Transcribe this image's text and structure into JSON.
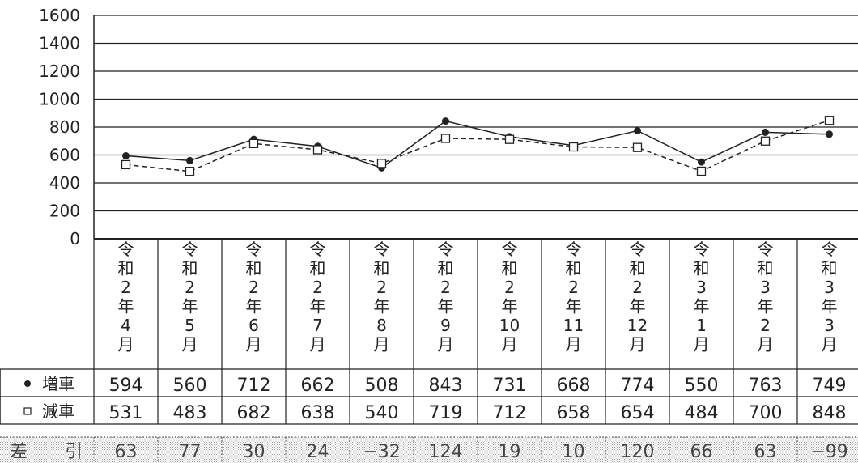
{
  "chart_data": {
    "type": "line",
    "categories": [
      "令和2年4月",
      "令和2年5月",
      "令和2年6月",
      "令和2年7月",
      "令和2年8月",
      "令和2年9月",
      "令和2年10月",
      "令和2年11月",
      "令和2年12月",
      "令和3年1月",
      "令和3年2月",
      "令和3年3月"
    ],
    "category_lines": [
      [
        "令",
        "和",
        "2",
        "年",
        "4",
        "月"
      ],
      [
        "令",
        "和",
        "2",
        "年",
        "5",
        "月"
      ],
      [
        "令",
        "和",
        "2",
        "年",
        "6",
        "月"
      ],
      [
        "令",
        "和",
        "2",
        "年",
        "7",
        "月"
      ],
      [
        "令",
        "和",
        "2",
        "年",
        "8",
        "月"
      ],
      [
        "令",
        "和",
        "2",
        "年",
        "9",
        "月"
      ],
      [
        "令",
        "和",
        "2",
        "年",
        "10",
        "月"
      ],
      [
        "令",
        "和",
        "2",
        "年",
        "11",
        "月"
      ],
      [
        "令",
        "和",
        "2",
        "年",
        "12",
        "月"
      ],
      [
        "令",
        "和",
        "3",
        "年",
        "1",
        "月"
      ],
      [
        "令",
        "和",
        "3",
        "年",
        "2",
        "月"
      ],
      [
        "令",
        "和",
        "3",
        "年",
        "3",
        "月"
      ]
    ],
    "series": [
      {
        "name": "増車",
        "marker": "●",
        "style": "solid",
        "values": [
          594,
          560,
          712,
          662,
          508,
          843,
          731,
          668,
          774,
          550,
          763,
          749
        ]
      },
      {
        "name": "減車",
        "marker": "□",
        "style": "dashed",
        "values": [
          531,
          483,
          682,
          638,
          540,
          719,
          712,
          658,
          654,
          484,
          700,
          848
        ]
      }
    ],
    "difference": {
      "label_left": "差",
      "label_right": "引",
      "values": [
        "63",
        "77",
        "30",
        "24",
        "−32",
        "124",
        "19",
        "10",
        "120",
        "66",
        "63",
        "−99"
      ]
    },
    "ylim": [
      0,
      1600
    ],
    "yticks": [
      0,
      200,
      400,
      600,
      800,
      1000,
      1200,
      1400,
      1600
    ],
    "grid": true,
    "legend": "table-below"
  }
}
